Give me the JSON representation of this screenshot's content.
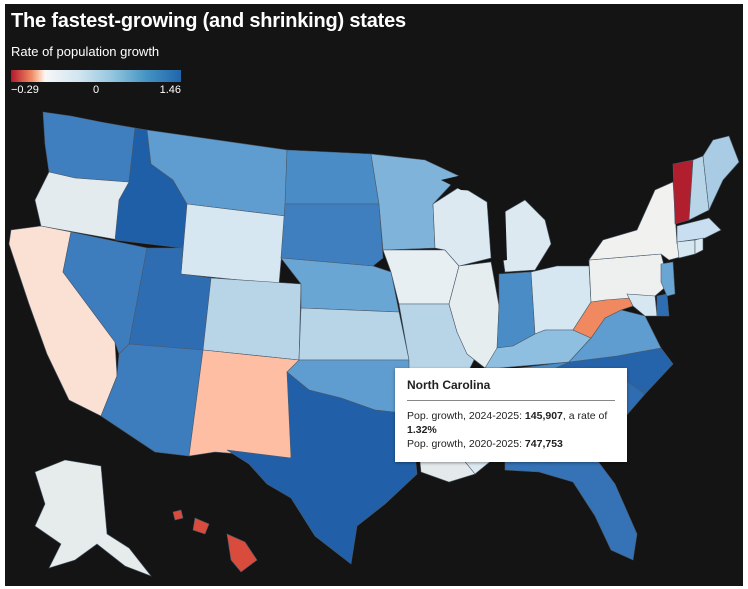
{
  "title": "The fastest-growing (and shrinking) states",
  "subtitle": "Rate of population growth",
  "legend": {
    "min_label": "−0.29",
    "zero_label": "0",
    "max_label": "1.46",
    "colors": [
      "#b2182b",
      "#ef8a62",
      "#f7f7f7",
      "#92c5de",
      "#2166ac"
    ]
  },
  "tooltip": {
    "state": "North Carolina",
    "line1_prefix": "Pop. growth, 2024-2025: ",
    "line1_value": "145,907",
    "line1_mid": ", a rate of ",
    "line1_rate": "1.32%",
    "line2_prefix": "Pop. growth, 2020-2025: ",
    "line2_value": "747,753"
  },
  "colors": {
    "background": "#141414",
    "ocean_border": "#ffffff"
  }
}
